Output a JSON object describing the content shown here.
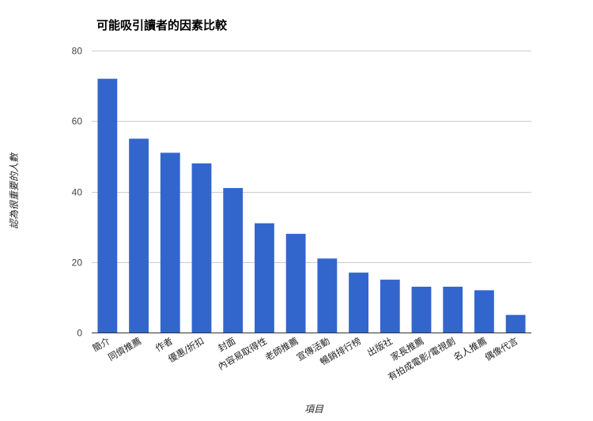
{
  "chart_data": {
    "type": "bar",
    "title": "可能吸引讀者的因素比較",
    "xlabel": "項目",
    "ylabel": "認為很重要的人數",
    "ylim": [
      0,
      80
    ],
    "yticks": [
      0,
      20,
      40,
      60,
      80
    ],
    "grid": true,
    "legend": "none",
    "categories": [
      "簡介",
      "同儕推薦",
      "作者",
      "優惠/折扣",
      "封面",
      "內容易取得性",
      "老師推薦",
      "宣傳活動",
      "暢銷排行榜",
      "出版社",
      "家長推薦",
      "有拍成電影/電視劇",
      "名人推薦",
      "偶像代言"
    ],
    "values": [
      72,
      55,
      51,
      48,
      41,
      31,
      28,
      21,
      17,
      15,
      13,
      13,
      12,
      5
    ],
    "colors": {
      "bar": "#3366cc",
      "grid": "#cccccc",
      "baseline": "#333333"
    }
  }
}
